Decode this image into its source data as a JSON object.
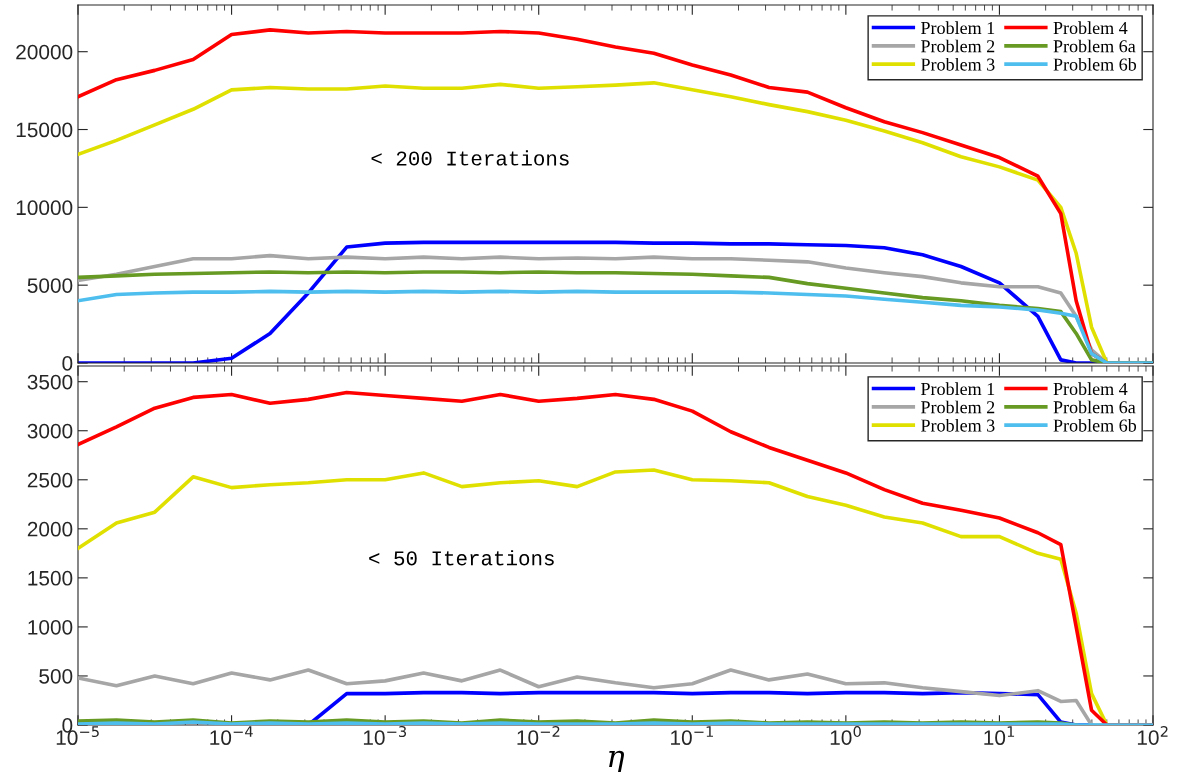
{
  "chart_data": [
    {
      "type": "line",
      "annotations": [
        "< 200 Iterations"
      ],
      "x": [
        1e-05,
        1.78e-05,
        3.16e-05,
        5.62e-05,
        0.0001,
        0.000178,
        0.000316,
        0.000562,
        0.001,
        0.00178,
        0.00316,
        0.00562,
        0.01,
        0.0178,
        0.0316,
        0.0562,
        0.1,
        0.178,
        0.316,
        0.562,
        1,
        1.78,
        3.16,
        5.62,
        10,
        17.8,
        25.1,
        31.6,
        39.8,
        50.1,
        100
      ],
      "log": "x",
      "xlim": [
        1e-05,
        100
      ],
      "xticks": [
        1e-05,
        0.0001,
        0.001,
        0.01,
        0.1,
        1,
        10,
        100
      ],
      "ylim": [
        0,
        23000
      ],
      "yticks": [
        0,
        5000,
        10000,
        15000,
        20000
      ],
      "tick_labels": "y",
      "grid": false,
      "legend": "top right",
      "line_style": "solid",
      "marker": "none",
      "series": [
        {
          "name": "Problem 1",
          "color": "#0000ff",
          "values": [
            0,
            0,
            0,
            0,
            300,
            1900,
            4500,
            7450,
            7700,
            7750,
            7750,
            7750,
            7750,
            7750,
            7750,
            7700,
            7700,
            7650,
            7650,
            7600,
            7550,
            7400,
            6950,
            6200,
            5150,
            3000,
            200,
            0,
            0,
            0,
            0
          ]
        },
        {
          "name": "Problem 2",
          "color": "#a6a6a6",
          "values": [
            5300,
            5700,
            6200,
            6700,
            6700,
            6900,
            6700,
            6800,
            6700,
            6800,
            6700,
            6800,
            6700,
            6750,
            6700,
            6800,
            6700,
            6700,
            6600,
            6500,
            6100,
            5800,
            5550,
            5150,
            4900,
            4900,
            4500,
            3000,
            850,
            0,
            0
          ]
        },
        {
          "name": "Problem 3",
          "color": "#e0e000",
          "values": [
            13400,
            14300,
            15300,
            16300,
            17550,
            17700,
            17600,
            17600,
            17800,
            17650,
            17650,
            17900,
            17650,
            17750,
            17850,
            18000,
            17550,
            17100,
            16600,
            16150,
            15600,
            14900,
            14150,
            13250,
            12600,
            11750,
            10000,
            7050,
            2300,
            0,
            0
          ]
        },
        {
          "name": "Problem 4",
          "color": "#ff0000",
          "values": [
            17100,
            18200,
            18800,
            19500,
            21100,
            21400,
            21200,
            21300,
            21200,
            21200,
            21200,
            21300,
            21200,
            20800,
            20300,
            19900,
            19150,
            18500,
            17700,
            17400,
            16400,
            15500,
            14800,
            14000,
            13200,
            12000,
            9600,
            4000,
            600,
            0,
            0
          ]
        },
        {
          "name": "Problem 6a",
          "color": "#669a22",
          "values": [
            5500,
            5600,
            5700,
            5750,
            5800,
            5850,
            5800,
            5850,
            5800,
            5850,
            5850,
            5800,
            5850,
            5800,
            5800,
            5750,
            5700,
            5600,
            5500,
            5100,
            4800,
            4500,
            4200,
            4000,
            3700,
            3500,
            3300,
            1900,
            200,
            0,
            0
          ]
        },
        {
          "name": "Problem 6b",
          "color": "#4dbeee",
          "values": [
            4000,
            4400,
            4500,
            4550,
            4550,
            4600,
            4550,
            4600,
            4550,
            4600,
            4550,
            4600,
            4550,
            4600,
            4550,
            4550,
            4550,
            4550,
            4500,
            4400,
            4300,
            4100,
            3900,
            3700,
            3600,
            3400,
            3200,
            3000,
            600,
            0,
            0
          ]
        }
      ]
    },
    {
      "type": "line",
      "xlabel": "η",
      "annotations": [
        "< 50 Iterations"
      ],
      "x": [
        1e-05,
        1.78e-05,
        3.16e-05,
        5.62e-05,
        0.0001,
        0.000178,
        0.000316,
        0.000562,
        0.001,
        0.00178,
        0.00316,
        0.00562,
        0.01,
        0.0178,
        0.0316,
        0.0562,
        0.1,
        0.178,
        0.316,
        0.562,
        1,
        1.78,
        3.16,
        5.62,
        10,
        17.8,
        25.1,
        31.6,
        39.8,
        50.1,
        100
      ],
      "log": "x",
      "xlim": [
        1e-05,
        100
      ],
      "xticks": [
        {
          "value": 1e-05,
          "label": "10$^{−5}$"
        },
        {
          "value": 0.0001,
          "label": "10$^{−4}$"
        },
        {
          "value": 0.001,
          "label": "10$^{−3}$"
        },
        {
          "value": 0.01,
          "label": "10$^{−2}$"
        },
        {
          "value": 0.1,
          "label": "10$^{−1}$"
        },
        {
          "value": 1,
          "label": "10$^{0}$"
        },
        {
          "value": 10,
          "label": "10$^{1}$"
        },
        {
          "value": 100,
          "label": "10$^{2}$"
        }
      ],
      "ylim": [
        0,
        3660
      ],
      "yticks": [
        0,
        500,
        1000,
        1500,
        2000,
        2500,
        3000,
        3500
      ],
      "grid": false,
      "legend": "top right",
      "line_style": "solid",
      "marker": "none",
      "series": [
        {
          "name": "Problem 1",
          "color": "#0000ff",
          "values": [
            null,
            null,
            null,
            null,
            null,
            0,
            0,
            320,
            320,
            330,
            330,
            320,
            330,
            330,
            330,
            330,
            320,
            330,
            330,
            320,
            330,
            330,
            320,
            330,
            320,
            310,
            30,
            0,
            0,
            null,
            null
          ]
        },
        {
          "name": "Problem 2",
          "color": "#a6a6a6",
          "values": [
            480,
            400,
            500,
            420,
            530,
            460,
            560,
            420,
            450,
            530,
            450,
            560,
            390,
            490,
            430,
            380,
            420,
            560,
            460,
            520,
            420,
            430,
            380,
            340,
            300,
            350,
            240,
            250,
            0,
            0,
            0
          ]
        },
        {
          "name": "Problem 3",
          "color": "#e0e000",
          "values": [
            1800,
            2060,
            2170,
            2530,
            2420,
            2450,
            2470,
            2500,
            2500,
            2570,
            2430,
            2470,
            2490,
            2430,
            2580,
            2600,
            2500,
            2490,
            2470,
            2330,
            2240,
            2120,
            2060,
            1920,
            1920,
            1750,
            1690,
            1140,
            320,
            0,
            0
          ]
        },
        {
          "name": "Problem 4",
          "color": "#ff0000",
          "values": [
            2860,
            3040,
            3230,
            3340,
            3370,
            3280,
            3320,
            3390,
            3360,
            3330,
            3300,
            3370,
            3300,
            3330,
            3370,
            3320,
            3200,
            2990,
            2830,
            2700,
            2570,
            2400,
            2260,
            2190,
            2110,
            1960,
            1840,
            1000,
            150,
            0,
            0
          ]
        },
        {
          "name": "Problem 6a",
          "color": "#669a22",
          "values": [
            40,
            50,
            30,
            50,
            20,
            40,
            30,
            50,
            30,
            40,
            20,
            50,
            30,
            40,
            20,
            50,
            30,
            40,
            20,
            30,
            20,
            30,
            20,
            30,
            20,
            30,
            20,
            0,
            null,
            null,
            null
          ]
        },
        {
          "name": "Problem 6b",
          "color": "#4dbeee",
          "values": [
            10,
            20,
            10,
            30,
            10,
            20,
            10,
            20,
            10,
            20,
            10,
            20,
            10,
            10,
            10,
            20,
            10,
            20,
            10,
            10,
            10,
            10,
            10,
            10,
            10,
            10,
            10,
            0,
            0,
            0,
            0
          ]
        }
      ]
    }
  ]
}
